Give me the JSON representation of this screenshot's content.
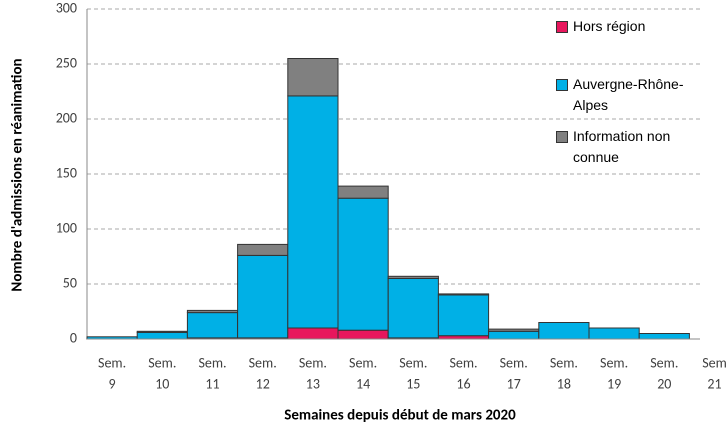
{
  "chart_data": {
    "type": "bar",
    "stacked": true,
    "x_label": "Semaines depuis début de mars 2020",
    "y_label": "Nombre d'admissions en réanimation",
    "categories": [
      [
        "Sem.",
        "9"
      ],
      [
        "Sem.",
        "10"
      ],
      [
        "Sem.",
        "11"
      ],
      [
        "Sem.",
        "12"
      ],
      [
        "Sem.",
        "13"
      ],
      [
        "Sem.",
        "14"
      ],
      [
        "Sem.",
        "15"
      ],
      [
        "Sem.",
        "16"
      ],
      [
        "Sem.",
        "17"
      ],
      [
        "Sem.",
        "18"
      ],
      [
        "Sem.",
        "19"
      ],
      [
        "Sem.",
        "20"
      ],
      [
        "Sem",
        "21"
      ]
    ],
    "series": [
      {
        "name": "Hors région",
        "color": "#e8175d",
        "values": [
          0,
          0,
          1,
          1,
          10,
          8,
          1,
          3,
          0,
          0,
          0,
          0,
          0
        ]
      },
      {
        "name": "Auvergne-Rhône-Alpes",
        "color": "#00b0e6",
        "values": [
          2,
          6,
          23,
          75,
          211,
          120,
          54,
          37,
          7,
          15,
          10,
          5,
          0
        ]
      },
      {
        "name": "Information non connue",
        "color": "#808080",
        "values": [
          0,
          1,
          2,
          10,
          34,
          11,
          2,
          1,
          2,
          0,
          0,
          0,
          0
        ]
      }
    ],
    "ylim": [
      0,
      300
    ],
    "yticks": [
      0,
      50,
      100,
      150,
      200,
      250,
      300
    ],
    "grid": true
  }
}
